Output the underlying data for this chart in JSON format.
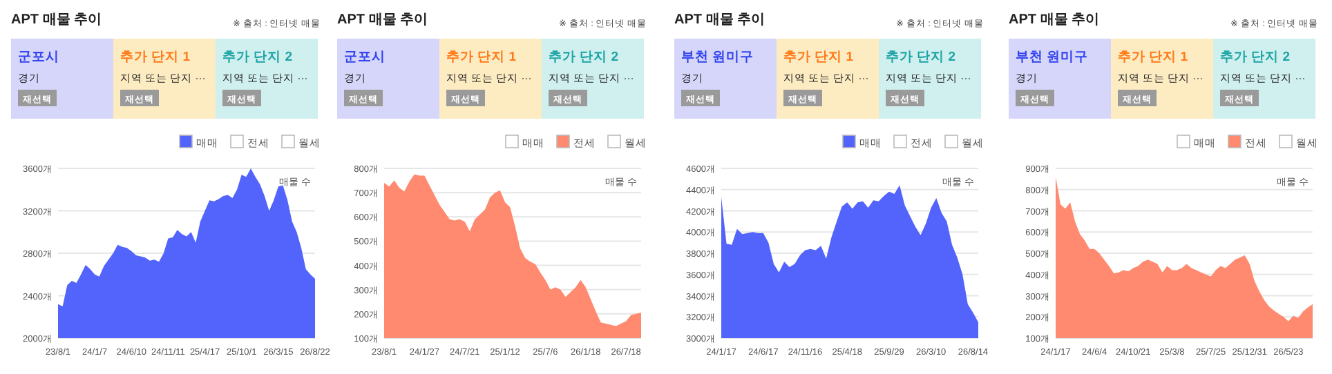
{
  "chart_data": [
    {
      "type": "other",
      "title": "APT 매물 추이",
      "categories": [
        "군포시",
        "추가 단지 1",
        "추가 단지 2"
      ],
      "colors": [
        "#d6d6fb",
        "#fdecc2",
        "#d0efef"
      ],
      "annotations": [
        "※ 출처 : 인터넷 매물",
        "경기",
        "재선택",
        "지역 또는 단지 ···",
        "재선택",
        "지역 또는 단지 ···",
        "재선택"
      ]
    },
    {
      "type": "area",
      "ylabel": "매물 수",
      "legend": "top right",
      "grid": "y",
      "ylim": [
        2000,
        3600
      ],
      "yticks": [
        {
          "value": 2000,
          "label": "2000개"
        },
        {
          "value": 2400,
          "label": "2400개"
        },
        {
          "value": 2800,
          "label": "2800개"
        },
        {
          "value": 3200,
          "label": "3200개"
        },
        {
          "value": 3600,
          "label": "3600개"
        }
      ],
      "categories": [
        "23/8/1",
        null,
        null,
        null,
        null,
        null,
        null,
        null,
        "24/1/7",
        null,
        null,
        null,
        null,
        null,
        null,
        null,
        "24/6/10",
        null,
        null,
        null,
        null,
        null,
        null,
        null,
        "24/11/11",
        null,
        null,
        null,
        null,
        null,
        null,
        null,
        "25/4/17",
        null,
        null,
        null,
        null,
        null,
        null,
        null,
        "25/10/1",
        null,
        null,
        null,
        null,
        null,
        null,
        null,
        "26/3/15",
        null,
        null,
        null,
        null,
        null,
        null,
        null,
        "26/8/22"
      ],
      "series": [
        {
          "name": "매매",
          "color": "#5264fb",
          "values": [
            2320,
            2300,
            2500,
            2540,
            2520,
            2600,
            2690,
            2650,
            2600,
            2580,
            2680,
            2740,
            2800,
            2880,
            2860,
            2850,
            2820,
            2780,
            2770,
            2760,
            2730,
            2740,
            2720,
            2800,
            2940,
            2950,
            3020,
            2980,
            2960,
            3000,
            2900,
            3100,
            3200,
            3300,
            3290,
            3310,
            3340,
            3350,
            3320,
            3400,
            3540,
            3520,
            3600,
            3520,
            3450,
            3340,
            3200,
            3300,
            3430,
            3440,
            3300,
            3100,
            3000,
            2850,
            2650,
            2600,
            2560
          ]
        },
        {
          "name": "전세",
          "color": "#ffffff",
          "values": [
            null,
            null,
            null,
            null,
            null,
            null,
            null,
            null,
            null,
            null,
            null,
            null,
            null,
            null,
            null,
            null,
            null,
            null,
            null,
            null,
            null,
            null,
            null,
            null,
            null,
            null,
            null,
            null,
            null,
            null,
            null,
            null,
            null,
            null,
            null,
            null,
            null,
            null,
            null,
            null,
            null,
            null,
            null,
            null,
            null,
            null,
            null,
            null,
            null,
            null,
            null,
            null,
            null,
            null,
            null,
            null,
            null
          ]
        },
        {
          "name": "월세",
          "color": "#ffffff",
          "values": [
            null,
            null,
            null,
            null,
            null,
            null,
            null,
            null,
            null,
            null,
            null,
            null,
            null,
            null,
            null,
            null,
            null,
            null,
            null,
            null,
            null,
            null,
            null,
            null,
            null,
            null,
            null,
            null,
            null,
            null,
            null,
            null,
            null,
            null,
            null,
            null,
            null,
            null,
            null,
            null,
            null,
            null,
            null,
            null,
            null,
            null,
            null,
            null,
            null,
            null,
            null,
            null,
            null,
            null,
            null,
            null,
            null
          ]
        }
      ]
    },
    {
      "type": "other",
      "title": "APT 매물 추이",
      "categories": [
        "군포시",
        "추가 단지 1",
        "추가 단지 2"
      ],
      "colors": [
        "#d6d6fb",
        "#fdecc2",
        "#d0efef"
      ],
      "annotations": [
        "※ 출처 : 인터넷 매물",
        "경기",
        "재선택",
        "지역 또는 단지 ···",
        "재선택",
        "지역 또는 단지 ···",
        "재선택"
      ]
    },
    {
      "type": "area",
      "ylabel": "매물 수",
      "legend": "top right",
      "grid": "y",
      "ylim": [
        100,
        800
      ],
      "yticks": [
        {
          "value": 100,
          "label": "100개"
        },
        {
          "value": 200,
          "label": "200개"
        },
        {
          "value": 300,
          "label": "300개"
        },
        {
          "value": 400,
          "label": "400개"
        },
        {
          "value": 500,
          "label": "500개"
        },
        {
          "value": 600,
          "label": "600개"
        },
        {
          "value": 700,
          "label": "700개"
        },
        {
          "value": 800,
          "label": "800개"
        }
      ],
      "categories": [
        "23/8/1",
        null,
        null,
        null,
        null,
        null,
        null,
        null,
        "24/1/27",
        null,
        null,
        null,
        null,
        null,
        null,
        null,
        "24/7/21",
        null,
        null,
        null,
        null,
        null,
        null,
        null,
        "25/1/12",
        null,
        null,
        null,
        null,
        null,
        null,
        null,
        "25/7/6",
        null,
        null,
        null,
        null,
        null,
        null,
        null,
        "26/1/18",
        null,
        null,
        null,
        null,
        null,
        null,
        null,
        "26/7/18",
        null,
        null,
        null
      ],
      "series": [
        {
          "name": "매매",
          "color": "#ffffff",
          "values": [
            null,
            null,
            null,
            null,
            null,
            null,
            null,
            null,
            null,
            null,
            null,
            null,
            null,
            null,
            null,
            null,
            null,
            null,
            null,
            null,
            null,
            null,
            null,
            null,
            null,
            null,
            null,
            null,
            null,
            null,
            null,
            null,
            null,
            null,
            null,
            null,
            null,
            null,
            null,
            null,
            null,
            null,
            null,
            null,
            null,
            null,
            null,
            null,
            null,
            null,
            null,
            null
          ]
        },
        {
          "name": "전세",
          "color": "#ff8a70",
          "values": [
            740,
            725,
            750,
            720,
            705,
            745,
            775,
            770,
            770,
            730,
            690,
            650,
            620,
            590,
            585,
            590,
            580,
            540,
            590,
            610,
            630,
            680,
            700,
            710,
            660,
            640,
            560,
            470,
            430,
            415,
            405,
            370,
            340,
            300,
            310,
            300,
            270,
            290,
            310,
            340,
            310,
            260,
            210,
            165,
            160,
            155,
            150,
            160,
            170,
            195,
            200,
            205
          ]
        },
        {
          "name": "월세",
          "color": "#ffffff",
          "values": [
            null,
            null,
            null,
            null,
            null,
            null,
            null,
            null,
            null,
            null,
            null,
            null,
            null,
            null,
            null,
            null,
            null,
            null,
            null,
            null,
            null,
            null,
            null,
            null,
            null,
            null,
            null,
            null,
            null,
            null,
            null,
            null,
            null,
            null,
            null,
            null,
            null,
            null,
            null,
            null,
            null,
            null,
            null,
            null,
            null,
            null,
            null,
            null,
            null,
            null,
            null,
            null
          ]
        }
      ]
    },
    {
      "type": "other",
      "title": "APT 매물 추이",
      "categories": [
        "부천 원미구",
        "추가 단지 1",
        "추가 단지 2"
      ],
      "colors": [
        "#d6d6fb",
        "#fdecc2",
        "#d0efef"
      ],
      "annotations": [
        "※ 출처 : 인터넷 매물",
        "경기",
        "재선택",
        "지역 또는 단지 ···",
        "재선택",
        "지역 또는 단지 ···",
        "재선택"
      ]
    },
    {
      "type": "area",
      "ylabel": "매물 수",
      "legend": "top right",
      "grid": "y",
      "ylim": [
        3000,
        4600
      ],
      "yticks": [
        {
          "value": 3000,
          "label": "3000개"
        },
        {
          "value": 3200,
          "label": "3200개"
        },
        {
          "value": 3400,
          "label": "3400개"
        },
        {
          "value": 3600,
          "label": "3600개"
        },
        {
          "value": 3800,
          "label": "3800개"
        },
        {
          "value": 4000,
          "label": "4000개"
        },
        {
          "value": 4200,
          "label": "4200개"
        },
        {
          "value": 4400,
          "label": "4400개"
        },
        {
          "value": 4600,
          "label": "4600개"
        }
      ],
      "categories": [
        "24/1/17",
        null,
        null,
        null,
        null,
        null,
        null,
        null,
        "24/6/17",
        null,
        null,
        null,
        null,
        null,
        null,
        null,
        "24/11/16",
        null,
        null,
        null,
        null,
        null,
        null,
        null,
        "25/4/18",
        null,
        null,
        null,
        null,
        null,
        null,
        null,
        "25/9/29",
        null,
        null,
        null,
        null,
        null,
        null,
        null,
        "26/3/10",
        null,
        null,
        null,
        null,
        null,
        null,
        null,
        "26/8/14",
        null
      ],
      "series": [
        {
          "name": "매매",
          "color": "#5264fb",
          "values": [
            4330,
            3890,
            3880,
            4030,
            3980,
            3990,
            4000,
            3990,
            3990,
            3900,
            3700,
            3620,
            3720,
            3670,
            3700,
            3780,
            3830,
            3840,
            3830,
            3870,
            3750,
            3950,
            4100,
            4240,
            4280,
            4220,
            4280,
            4290,
            4230,
            4300,
            4290,
            4340,
            4380,
            4360,
            4440,
            4250,
            4150,
            4050,
            3970,
            4080,
            4230,
            4320,
            4180,
            4100,
            3880,
            3760,
            3600,
            3320,
            3240,
            3150
          ]
        },
        {
          "name": "전세",
          "color": "#ffffff",
          "values": [
            null,
            null,
            null,
            null,
            null,
            null,
            null,
            null,
            null,
            null,
            null,
            null,
            null,
            null,
            null,
            null,
            null,
            null,
            null,
            null,
            null,
            null,
            null,
            null,
            null,
            null,
            null,
            null,
            null,
            null,
            null,
            null,
            null,
            null,
            null,
            null,
            null,
            null,
            null,
            null,
            null,
            null,
            null,
            null,
            null,
            null,
            null,
            null,
            null,
            null
          ]
        },
        {
          "name": "월세",
          "color": "#ffffff",
          "values": [
            null,
            null,
            null,
            null,
            null,
            null,
            null,
            null,
            null,
            null,
            null,
            null,
            null,
            null,
            null,
            null,
            null,
            null,
            null,
            null,
            null,
            null,
            null,
            null,
            null,
            null,
            null,
            null,
            null,
            null,
            null,
            null,
            null,
            null,
            null,
            null,
            null,
            null,
            null,
            null,
            null,
            null,
            null,
            null,
            null,
            null,
            null,
            null,
            null,
            null
          ]
        }
      ]
    },
    {
      "type": "other",
      "title": "APT 매물 추이",
      "categories": [
        "부천 원미구",
        "추가 단지 1",
        "추가 단지 2"
      ],
      "colors": [
        "#d6d6fb",
        "#fdecc2",
        "#d0efef"
      ],
      "annotations": [
        "※ 출처 : 인터넷 매물",
        "경기",
        "재선택",
        "지역 또는 단지 ···",
        "재선택",
        "지역 또는 단지 ···",
        "재선택"
      ]
    },
    {
      "type": "area",
      "ylabel": "매물 수",
      "legend": "top right",
      "grid": "y",
      "ylim": [
        100,
        900
      ],
      "yticks": [
        {
          "value": 100,
          "label": "100개"
        },
        {
          "value": 200,
          "label": "200개"
        },
        {
          "value": 300,
          "label": "300개"
        },
        {
          "value": 400,
          "label": "400개"
        },
        {
          "value": 500,
          "label": "500개"
        },
        {
          "value": 600,
          "label": "600개"
        },
        {
          "value": 700,
          "label": "700개"
        },
        {
          "value": 800,
          "label": "800개"
        },
        {
          "value": 900,
          "label": "900개"
        }
      ],
      "categories": [
        "24/1/17",
        null,
        null,
        null,
        null,
        null,
        null,
        null,
        "24/6/4",
        null,
        null,
        null,
        null,
        null,
        null,
        null,
        "24/10/21",
        null,
        null,
        null,
        null,
        null,
        null,
        null,
        "25/3/8",
        null,
        null,
        null,
        null,
        null,
        null,
        null,
        "25/7/25",
        null,
        null,
        null,
        null,
        null,
        null,
        null,
        "25/12/31",
        null,
        null,
        null,
        null,
        null,
        null,
        null,
        "26/5/23",
        null,
        null,
        null,
        null,
        null
      ],
      "series": [
        {
          "name": "매매",
          "color": "#ffffff",
          "values": [
            null,
            null,
            null,
            null,
            null,
            null,
            null,
            null,
            null,
            null,
            null,
            null,
            null,
            null,
            null,
            null,
            null,
            null,
            null,
            null,
            null,
            null,
            null,
            null,
            null,
            null,
            null,
            null,
            null,
            null,
            null,
            null,
            null,
            null,
            null,
            null,
            null,
            null,
            null,
            null,
            null,
            null,
            null,
            null,
            null,
            null,
            null,
            null,
            null,
            null,
            null,
            null,
            null,
            null
          ]
        },
        {
          "name": "전세",
          "color": "#ff8a70",
          "values": [
            860,
            730,
            710,
            740,
            650,
            590,
            560,
            520,
            520,
            500,
            470,
            440,
            405,
            410,
            420,
            415,
            430,
            440,
            460,
            470,
            460,
            450,
            410,
            440,
            420,
            420,
            430,
            450,
            430,
            420,
            410,
            400,
            390,
            420,
            440,
            430,
            450,
            470,
            480,
            490,
            450,
            370,
            320,
            280,
            250,
            230,
            215,
            200,
            180,
            205,
            195,
            225,
            245,
            260
          ]
        },
        {
          "name": "월세",
          "color": "#ffffff",
          "values": [
            null,
            null,
            null,
            null,
            null,
            null,
            null,
            null,
            null,
            null,
            null,
            null,
            null,
            null,
            null,
            null,
            null,
            null,
            null,
            null,
            null,
            null,
            null,
            null,
            null,
            null,
            null,
            null,
            null,
            null,
            null,
            null,
            null,
            null,
            null,
            null,
            null,
            null,
            null,
            null,
            null,
            null,
            null,
            null,
            null,
            null,
            null,
            null,
            null,
            null,
            null,
            null,
            null,
            null
          ]
        }
      ]
    }
  ]
}
